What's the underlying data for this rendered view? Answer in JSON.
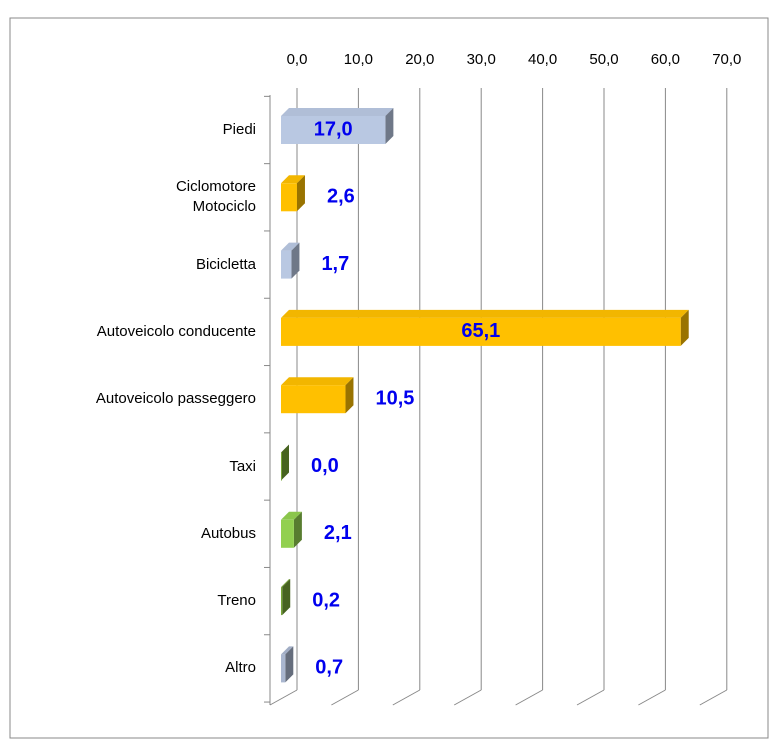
{
  "chart_data": {
    "type": "bar",
    "orientation": "horizontal",
    "categories": [
      "Piedi",
      "Ciclomotore\nMotociclo",
      "Bicicletta",
      "Autoveicolo conducente",
      "Autoveicolo passeggero",
      "Taxi",
      "Autobus",
      "Treno",
      "Altro"
    ],
    "values": [
      17.0,
      2.6,
      1.7,
      65.1,
      10.5,
      0.0,
      2.1,
      0.2,
      0.7
    ],
    "value_labels": [
      "17,0",
      "2,6",
      "1,7",
      "65,1",
      "10,5",
      "0,0",
      "2,1",
      "0,2",
      "0,7"
    ],
    "colors": [
      "#b9c8e2",
      "#ffc000",
      "#b9c8e2",
      "#ffc000",
      "#ffc000",
      "#76a535",
      "#92d050",
      "#76a535",
      "#a9b6cf"
    ],
    "xlim": [
      0,
      70
    ],
    "xticks": [
      {
        "value": 0,
        "label": "0,0"
      },
      {
        "value": 10,
        "label": "10,0"
      },
      {
        "value": 20,
        "label": "20,0"
      },
      {
        "value": 30,
        "label": "30,0"
      },
      {
        "value": 40,
        "label": "40,0"
      },
      {
        "value": 50,
        "label": "50,0"
      },
      {
        "value": 60,
        "label": "60,0"
      },
      {
        "value": 70,
        "label": "70,0"
      }
    ],
    "grid": true
  }
}
